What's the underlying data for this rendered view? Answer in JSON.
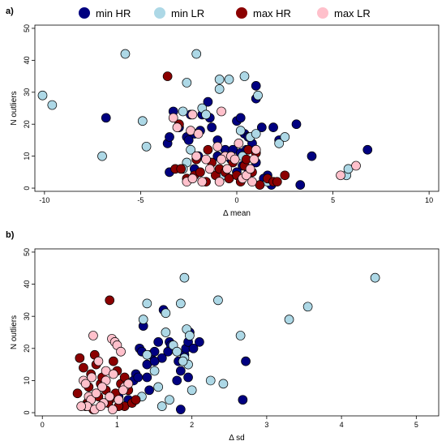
{
  "legend": {
    "entries": [
      {
        "name": "min HR",
        "color": "#000080"
      },
      {
        "name": "min LR",
        "color": "#add8e6"
      },
      {
        "name": "max HR",
        "color": "#8b0000"
      },
      {
        "name": "max LR",
        "color": "#ffc0cb"
      }
    ]
  },
  "chart_data": [
    {
      "type": "scatter",
      "panel": "a)",
      "xlabel": "Δ mean",
      "ylabel": "N outliers",
      "xlim": [
        -10.5,
        10.5
      ],
      "ylim": [
        -1,
        51
      ],
      "xticks": [
        -10,
        -5,
        0,
        5,
        10
      ],
      "yticks": [
        0,
        10,
        20,
        30,
        40,
        50
      ],
      "grid": false,
      "legend_placement": "top",
      "series": [
        {
          "name": "min HR",
          "color": "#000080",
          "points": [
            [
              -6.8,
              22
            ],
            [
              -3.6,
              14
            ],
            [
              -3.5,
              16
            ],
            [
              -3.3,
              24
            ],
            [
              -3.0,
              19
            ],
            [
              -2.6,
              16
            ],
            [
              -2.4,
              23
            ],
            [
              -2.2,
              17
            ],
            [
              -1.9,
              18
            ],
            [
              -1.8,
              23
            ],
            [
              -1.5,
              27
            ],
            [
              -1.4,
              22
            ],
            [
              -1.3,
              19
            ],
            [
              -1.0,
              15
            ],
            [
              -0.6,
              12
            ],
            [
              -0.2,
              12
            ],
            [
              0.0,
              21
            ],
            [
              0.2,
              22
            ],
            [
              0.4,
              17
            ],
            [
              0.6,
              16
            ],
            [
              1.0,
              32
            ],
            [
              1.0,
              28
            ],
            [
              1.3,
              19
            ],
            [
              1.9,
              19
            ],
            [
              2.2,
              15
            ],
            [
              3.1,
              20
            ],
            [
              3.3,
              1
            ],
            [
              1.6,
              4
            ],
            [
              1.8,
              1
            ],
            [
              3.9,
              10
            ],
            [
              6.8,
              12
            ],
            [
              0.2,
              11
            ],
            [
              0.8,
              14
            ],
            [
              -3.5,
              5
            ],
            [
              -2.5,
              15
            ],
            [
              0.5,
              12
            ],
            [
              1.0,
              8
            ],
            [
              -0.3,
              9
            ],
            [
              0.3,
              7
            ],
            [
              -1.0,
              10
            ],
            [
              0.6,
              6
            ],
            [
              1.4,
              3
            ],
            [
              -2.0,
              10
            ],
            [
              -2.2,
              6
            ],
            [
              0.0,
              5
            ]
          ]
        },
        {
          "name": "min LR",
          "color": "#add8e6",
          "points": [
            [
              -10.1,
              29
            ],
            [
              -9.6,
              26
            ],
            [
              -5.8,
              42
            ],
            [
              -2.1,
              42
            ],
            [
              -7.0,
              10
            ],
            [
              -4.9,
              21
            ],
            [
              -4.7,
              13
            ],
            [
              -2.6,
              33
            ],
            [
              -0.9,
              31
            ],
            [
              -0.9,
              34
            ],
            [
              -0.4,
              34
            ],
            [
              0.4,
              35
            ],
            [
              1.1,
              29
            ],
            [
              -2.8,
              24
            ],
            [
              -1.8,
              25
            ],
            [
              -1.6,
              23
            ],
            [
              -2.4,
              12
            ],
            [
              -2.6,
              8
            ],
            [
              -2.8,
              6
            ],
            [
              -0.7,
              4
            ],
            [
              0.2,
              18
            ],
            [
              0.7,
              16
            ],
            [
              1.6,
              2
            ],
            [
              2.2,
              14
            ],
            [
              2.5,
              16
            ],
            [
              5.7,
              4
            ],
            [
              5.8,
              6
            ],
            [
              1.0,
              17
            ],
            [
              0.3,
              10
            ]
          ]
        },
        {
          "name": "max HR",
          "color": "#8b0000",
          "points": [
            [
              -3.6,
              35
            ],
            [
              -3.0,
              20
            ],
            [
              -3.2,
              6
            ],
            [
              -2.9,
              6
            ],
            [
              -2.6,
              3
            ],
            [
              -2.2,
              4
            ],
            [
              -1.9,
              5
            ],
            [
              -1.6,
              2
            ],
            [
              -1.3,
              8
            ],
            [
              -1.1,
              4
            ],
            [
              -0.9,
              6
            ],
            [
              -0.6,
              5
            ],
            [
              -0.4,
              3
            ],
            [
              -0.2,
              8
            ],
            [
              0.0,
              4
            ],
            [
              0.2,
              2
            ],
            [
              0.4,
              7
            ],
            [
              0.6,
              12
            ],
            [
              0.8,
              5
            ],
            [
              1.0,
              11
            ],
            [
              1.2,
              1
            ],
            [
              1.6,
              3
            ],
            [
              1.9,
              2
            ],
            [
              2.1,
              2
            ],
            [
              2.5,
              4
            ],
            [
              -2.1,
              9
            ],
            [
              -1.5,
              12
            ],
            [
              0.5,
              9
            ]
          ]
        },
        {
          "name": "max LR",
          "color": "#ffc0cb",
          "points": [
            [
              -3.3,
              22
            ],
            [
              -3.1,
              19
            ],
            [
              -2.4,
              18
            ],
            [
              -2.3,
              23
            ],
            [
              -2.0,
              17
            ],
            [
              -2.1,
              10
            ],
            [
              -2.6,
              2
            ],
            [
              -2.3,
              3
            ],
            [
              -1.8,
              2
            ],
            [
              -1.6,
              9
            ],
            [
              -1.0,
              13
            ],
            [
              -0.8,
              24
            ],
            [
              -0.9,
              2
            ],
            [
              -0.6,
              10
            ],
            [
              -0.8,
              9
            ],
            [
              -0.5,
              6
            ],
            [
              -0.3,
              10
            ],
            [
              0.1,
              14
            ],
            [
              0.3,
              3
            ],
            [
              0.5,
              4
            ],
            [
              0.7,
              6
            ],
            [
              1.0,
              12
            ],
            [
              0.9,
              9
            ],
            [
              5.4,
              4
            ],
            [
              6.2,
              7
            ],
            [
              -1.4,
              6
            ],
            [
              -0.1,
              9
            ],
            [
              0.8,
              2
            ]
          ]
        }
      ]
    },
    {
      "type": "scatter",
      "panel": "b)",
      "xlabel": "Δ sd",
      "ylabel": "N outliers",
      "xlim": [
        -0.1,
        5.3
      ],
      "ylim": [
        -1,
        51
      ],
      "xticks": [
        0,
        1,
        2,
        3,
        4,
        5
      ],
      "yticks": [
        0,
        10,
        20,
        30,
        40,
        50
      ],
      "grid": false,
      "series": [
        {
          "name": "min HR",
          "color": "#000080",
          "points": [
            [
              1.15,
              4
            ],
            [
              1.25,
              12
            ],
            [
              1.3,
              20
            ],
            [
              1.33,
              19
            ],
            [
              1.35,
              27
            ],
            [
              1.4,
              15
            ],
            [
              1.45,
              18
            ],
            [
              1.5,
              19
            ],
            [
              1.55,
              22
            ],
            [
              1.6,
              17
            ],
            [
              1.62,
              32
            ],
            [
              1.7,
              22
            ],
            [
              1.72,
              21
            ],
            [
              1.8,
              10
            ],
            [
              1.82,
              16
            ],
            [
              1.85,
              13
            ],
            [
              1.9,
              18
            ],
            [
              1.92,
              20
            ],
            [
              1.95,
              22
            ],
            [
              1.97,
              25
            ],
            [
              2.02,
              20
            ],
            [
              2.1,
              22
            ],
            [
              1.22,
              10
            ],
            [
              1.4,
              11
            ],
            [
              1.95,
              11
            ],
            [
              2.72,
              16
            ],
            [
              2.68,
              4
            ],
            [
              1.02,
              5
            ],
            [
              1.5,
              16
            ],
            [
              1.68,
              19
            ],
            [
              1.85,
              1
            ],
            [
              1.28,
              11
            ],
            [
              1.43,
              7
            ]
          ]
        },
        {
          "name": "min LR",
          "color": "#add8e6",
          "points": [
            [
              4.45,
              42
            ],
            [
              3.55,
              33
            ],
            [
              3.3,
              29
            ],
            [
              1.9,
              42
            ],
            [
              1.85,
              34
            ],
            [
              2.35,
              35
            ],
            [
              1.65,
              31
            ],
            [
              1.35,
              29
            ],
            [
              1.4,
              34
            ],
            [
              1.93,
              26
            ],
            [
              1.97,
              24
            ],
            [
              1.65,
              25
            ],
            [
              1.75,
              21
            ],
            [
              1.8,
              19
            ],
            [
              1.9,
              17
            ],
            [
              1.5,
              13
            ],
            [
              1.95,
              15
            ],
            [
              2.25,
              10
            ],
            [
              2.42,
              9
            ],
            [
              2.65,
              24
            ],
            [
              2.0,
              7
            ],
            [
              1.7,
              4
            ],
            [
              1.6,
              2
            ],
            [
              1.55,
              8
            ],
            [
              1.33,
              5
            ],
            [
              1.4,
              18
            ],
            [
              1.88,
              16
            ]
          ]
        },
        {
          "name": "max HR",
          "color": "#8b0000",
          "points": [
            [
              0.9,
              35
            ],
            [
              0.47,
              6
            ],
            [
              0.5,
              17
            ],
            [
              0.55,
              14
            ],
            [
              0.6,
              3
            ],
            [
              0.62,
              8
            ],
            [
              0.65,
              12
            ],
            [
              0.7,
              18
            ],
            [
              0.72,
              15
            ],
            [
              0.75,
              5
            ],
            [
              0.78,
              9
            ],
            [
              0.8,
              11
            ],
            [
              0.85,
              7
            ],
            [
              0.9,
              4
            ],
            [
              0.95,
              16
            ],
            [
              1.0,
              13
            ],
            [
              1.05,
              9
            ],
            [
              1.1,
              2
            ],
            [
              1.2,
              3
            ],
            [
              1.25,
              4
            ],
            [
              1.1,
              11
            ],
            [
              1.02,
              2
            ],
            [
              0.98,
              6
            ],
            [
              0.58,
              2
            ],
            [
              0.68,
              1
            ],
            [
              0.88,
              3
            ],
            [
              1.15,
              7
            ]
          ]
        },
        {
          "name": "max LR",
          "color": "#ffc0cb",
          "points": [
            [
              0.68,
              24
            ],
            [
              0.93,
              23
            ],
            [
              0.97,
              22
            ],
            [
              1.0,
              21
            ],
            [
              1.05,
              19
            ],
            [
              0.75,
              16
            ],
            [
              0.85,
              13
            ],
            [
              0.95,
              12
            ],
            [
              1.1,
              8
            ],
            [
              1.15,
              9
            ],
            [
              0.55,
              10
            ],
            [
              0.58,
              9
            ],
            [
              0.62,
              5
            ],
            [
              0.65,
              4
            ],
            [
              0.72,
              6
            ],
            [
              0.82,
              3
            ],
            [
              0.9,
              5
            ],
            [
              1.02,
              4
            ],
            [
              1.08,
              7
            ],
            [
              0.6,
              2
            ],
            [
              0.7,
              1
            ],
            [
              0.78,
              2
            ],
            [
              0.85,
              10
            ],
            [
              0.52,
              2
            ],
            [
              0.66,
              11
            ],
            [
              0.8,
              8
            ],
            [
              0.94,
              1
            ]
          ]
        }
      ]
    }
  ]
}
